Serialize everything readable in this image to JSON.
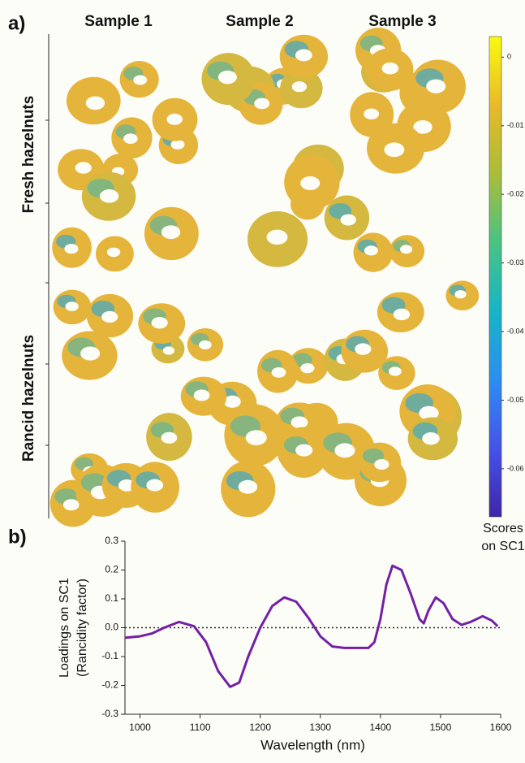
{
  "chart_data": [
    {
      "type": "colorbar",
      "panel_label": "a)",
      "columns": [
        "Sample 1",
        "Sample 2",
        "Sample 3"
      ],
      "rows": [
        "Fresh hazelnuts",
        "Rancid hazelnuts"
      ],
      "label": [
        "Scores",
        "on SC1"
      ],
      "ylim": [
        -0.067,
        0.003
      ],
      "yticks": [
        0,
        -0.01,
        -0.02,
        -0.03,
        -0.04,
        -0.05,
        -0.06
      ],
      "colors": [
        "#3e26a8",
        "#4653e9",
        "#2d8ef0",
        "#17b5c6",
        "#49c383",
        "#a9bd3a",
        "#e9b92b",
        "#f9fb0e"
      ]
    },
    {
      "type": "line",
      "panel_label": "b)",
      "xlabel": "Wavelength (nm)",
      "ylabel": [
        "Loadings on SC1",
        "(Rancidity factor)"
      ],
      "xlim": [
        975,
        1600
      ],
      "ylim": [
        -0.3,
        0.3
      ],
      "xticks": [
        1000,
        1100,
        1200,
        1300,
        1400,
        1500,
        1600
      ],
      "yticks": [
        -0.3,
        -0.2,
        -0.1,
        {
          "value": 0,
          "label": "0.0"
        },
        0.1,
        0.2,
        0.3
      ],
      "zero_line": true,
      "series": [
        {
          "color": "#7420a6",
          "x": [
            975,
            1000,
            1020,
            1040,
            1065,
            1090,
            1110,
            1130,
            1150,
            1165,
            1180,
            1200,
            1220,
            1240,
            1260,
            1280,
            1300,
            1320,
            1340,
            1360,
            1380,
            1390,
            1400,
            1410,
            1420,
            1435,
            1450,
            1465,
            1472,
            1480,
            1492,
            1505,
            1520,
            1535,
            1550,
            1570,
            1585,
            1595
          ],
          "values": [
            -0.035,
            -0.03,
            -0.02,
            0.0,
            0.02,
            0.005,
            -0.05,
            -0.15,
            -0.205,
            -0.19,
            -0.1,
            0.0,
            0.075,
            0.105,
            0.09,
            0.035,
            -0.03,
            -0.065,
            -0.07,
            -0.07,
            -0.07,
            -0.05,
            0.03,
            0.15,
            0.215,
            0.2,
            0.12,
            0.03,
            0.015,
            0.06,
            0.105,
            0.085,
            0.03,
            0.01,
            0.02,
            0.04,
            0.025,
            0.005
          ]
        }
      ]
    }
  ]
}
